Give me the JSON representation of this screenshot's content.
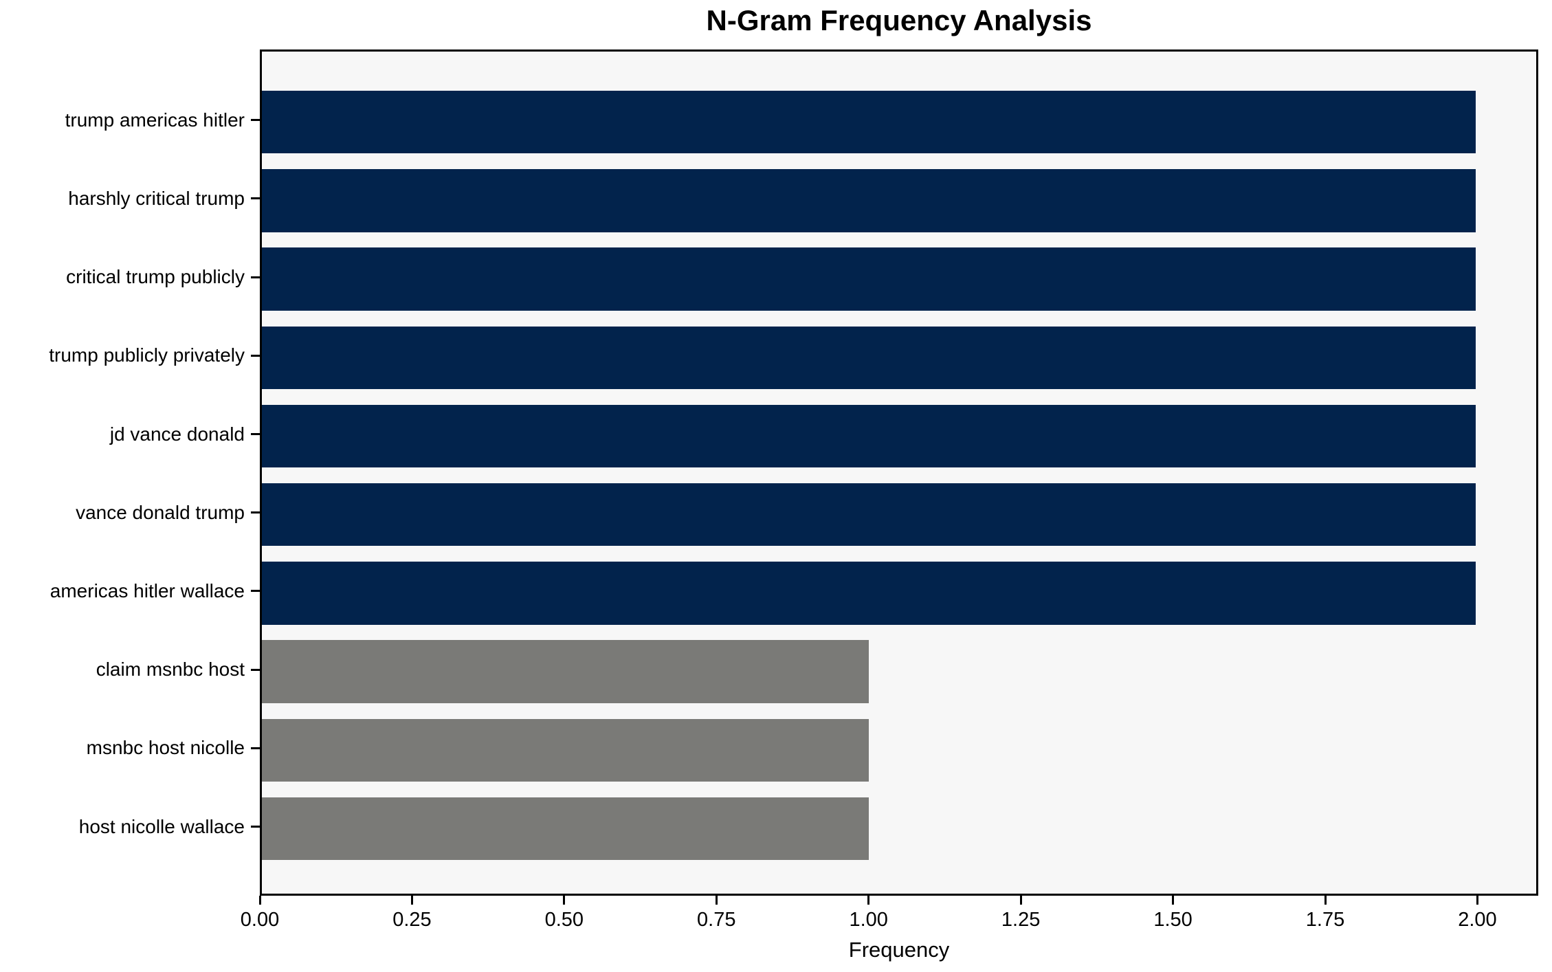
{
  "chart_data": {
    "type": "bar",
    "orientation": "horizontal",
    "title": "N-Gram Frequency Analysis",
    "xlabel": "Frequency",
    "ylabel": "",
    "categories": [
      "trump americas hitler",
      "harshly critical trump",
      "critical trump publicly",
      "trump publicly privately",
      "jd vance donald",
      "vance donald trump",
      "americas hitler wallace",
      "claim msnbc host",
      "msnbc host nicolle",
      "host nicolle wallace"
    ],
    "values": [
      2,
      2,
      2,
      2,
      2,
      2,
      2,
      1,
      1,
      1
    ],
    "bar_colors": [
      "#02234c",
      "#02234c",
      "#02234c",
      "#02234c",
      "#02234c",
      "#02234c",
      "#02234c",
      "#7a7a77",
      "#7a7a77",
      "#7a7a77"
    ],
    "xlim": [
      0,
      2.1
    ],
    "x_tick_values": [
      0,
      0.25,
      0.5,
      0.75,
      1.0,
      1.25,
      1.5,
      1.75,
      2.0
    ],
    "x_tick_labels": [
      "0.00",
      "0.25",
      "0.50",
      "0.75",
      "1.00",
      "1.25",
      "1.50",
      "1.75",
      "2.00"
    ],
    "grid": false,
    "legend": "none",
    "colors": {
      "bar_highlight": "#02234c",
      "bar_default": "#7a7a77",
      "plot_background": "#f7f7f7",
      "figure_background": "#ffffff",
      "axis": "#000000",
      "text": "#000000"
    }
  }
}
